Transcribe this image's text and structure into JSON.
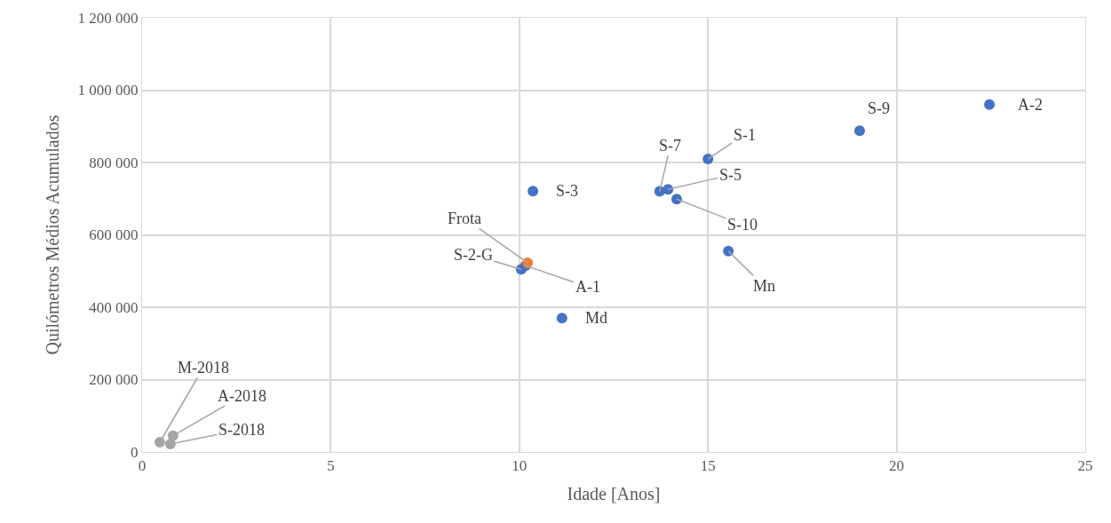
{
  "chart_data": {
    "type": "scatter",
    "xlabel": "Idade [Anos]",
    "ylabel": "Quilómetros Médios Acumulados",
    "series": [
      {
        "color": "#4472c4",
        "x": [
          22.46,
          19.02,
          15.0,
          13.72,
          13.94,
          14.17,
          15.54,
          10.36,
          10.05,
          10.16,
          11.13
        ],
        "values": [
          960000,
          888000,
          810000,
          720000,
          726000,
          699000,
          555000,
          721000,
          505000,
          515000,
          370000
        ]
      },
      {
        "color": "#ed7d31",
        "x": [
          10.22
        ],
        "values": [
          523000
        ]
      },
      {
        "color": "#a5a5a5",
        "x": [
          0.82,
          0.75,
          0.47
        ],
        "values": [
          45000,
          22000,
          27000
        ]
      }
    ],
    "annotations": [
      {
        "text": "A-2",
        "x": 22.46,
        "y": 960000
      },
      {
        "text": "S-9",
        "x": 19.02,
        "y": 888000
      },
      {
        "text": "S-1",
        "x": 15.0,
        "y": 810000
      },
      {
        "text": "S-7",
        "x": 13.72,
        "y": 720000
      },
      {
        "text": "S-5",
        "x": 13.94,
        "y": 726000
      },
      {
        "text": "S-10",
        "x": 14.17,
        "y": 699000
      },
      {
        "text": "Mn",
        "x": 15.54,
        "y": 555000
      },
      {
        "text": "S-3",
        "x": 10.36,
        "y": 721000
      },
      {
        "text": "Frota",
        "x": 10.22,
        "y": 523000
      },
      {
        "text": "S-2-G",
        "x": 10.05,
        "y": 505000
      },
      {
        "text": "A-1",
        "x": 10.16,
        "y": 515000
      },
      {
        "text": "Md",
        "x": 11.13,
        "y": 370000
      },
      {
        "text": "M-2018",
        "x": 0.47,
        "y": 27000
      },
      {
        "text": "A-2018",
        "x": 0.82,
        "y": 45000
      },
      {
        "text": "S-2018",
        "x": 0.75,
        "y": 22000
      }
    ],
    "xlim": [
      0,
      25
    ],
    "xticks": [
      0,
      5,
      10,
      15,
      20,
      25
    ],
    "ylim": [
      0,
      1200000
    ],
    "yticks": [
      0,
      {
        "value": 200000,
        "label": "200 000"
      },
      {
        "value": 400000,
        "label": "400 000"
      },
      {
        "value": 600000,
        "label": "600 000"
      },
      {
        "value": 800000,
        "label": "800 000"
      },
      {
        "value": 1000000,
        "label": "1 000 000"
      },
      {
        "value": 1200000,
        "label": "1 200 000"
      }
    ],
    "grid": true,
    "marker": "circle"
  }
}
